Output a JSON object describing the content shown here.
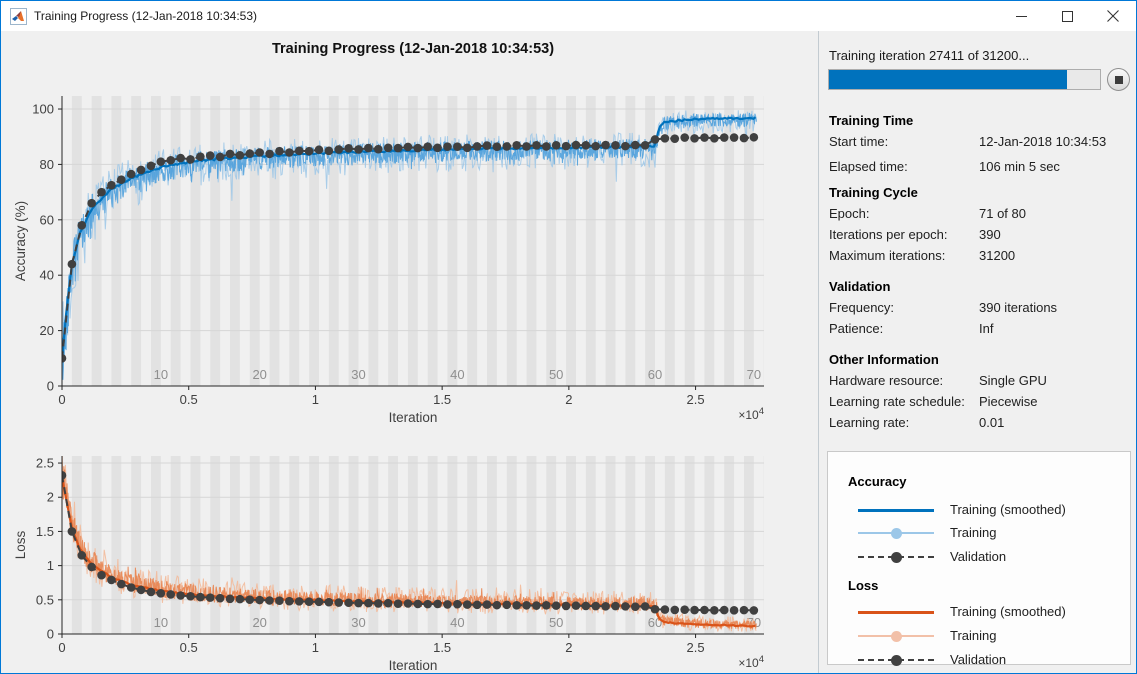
{
  "window": {
    "title": "Training Progress (12-Jan-2018 10:34:53)",
    "controls": {
      "minimize": "minimize",
      "maximize": "maximize",
      "close": "close"
    }
  },
  "panel": {
    "progress": {
      "label": "Training iteration 27411 of 31200...",
      "current": 27411,
      "total": 31200,
      "fraction": 0.8785
    },
    "sections": [
      {
        "title": "Training Time",
        "rows": [
          {
            "label": "Start time:",
            "value": "12-Jan-2018 10:34:53"
          },
          {
            "label": "Elapsed time:",
            "value": "106 min 5 sec"
          }
        ]
      },
      {
        "title": "Training Cycle",
        "rows": [
          {
            "label": "Epoch:",
            "value": "71 of 80"
          },
          {
            "label": "Iterations per epoch:",
            "value": "390"
          },
          {
            "label": "Maximum iterations:",
            "value": "31200"
          }
        ]
      },
      {
        "title": "Validation",
        "rows": [
          {
            "label": "Frequency:",
            "value": "390 iterations"
          },
          {
            "label": "Patience:",
            "value": "Inf"
          }
        ]
      },
      {
        "title": "Other Information",
        "rows": [
          {
            "label": "Hardware resource:",
            "value": "Single GPU"
          },
          {
            "label": "Learning rate schedule:",
            "value": "Piecewise"
          },
          {
            "label": "Learning rate:",
            "value": "0.01"
          }
        ]
      }
    ],
    "legend": {
      "groups": [
        {
          "title": "Accuracy",
          "items": [
            {
              "label": "Training (smoothed)",
              "style": "solid",
              "color": "#0072bd"
            },
            {
              "label": "Training",
              "style": "marker-line",
              "color": "#9cc7e8"
            },
            {
              "label": "Validation",
              "style": "dashed-marker",
              "color": "#404040"
            }
          ]
        },
        {
          "title": "Loss",
          "items": [
            {
              "label": "Training (smoothed)",
              "style": "solid",
              "color": "#d95319"
            },
            {
              "label": "Training",
              "style": "marker-line",
              "color": "#f2c0a8"
            },
            {
              "label": "Validation",
              "style": "dashed-marker",
              "color": "#404040"
            }
          ]
        }
      ]
    }
  },
  "chart_data": [
    {
      "type": "line",
      "title": "Training Progress (12-Jan-2018 10:34:53)",
      "xlabel": "Iteration",
      "ylabel": "Accuracy (%)",
      "x_multiplier_base": "×10",
      "x_multiplier_exp": "4",
      "xlim": [
        0,
        27700
      ],
      "ylim": [
        0,
        104.7
      ],
      "xticks": [
        0,
        5000,
        10000,
        15000,
        20000,
        25000
      ],
      "xtick_labels": [
        "0",
        "0.5",
        "1",
        "1.5",
        "2",
        "2.5"
      ],
      "yticks": [
        0,
        20,
        40,
        60,
        80,
        100
      ],
      "ytick_labels": [
        "0",
        "20",
        "40",
        "60",
        "80",
        "100"
      ],
      "iterations_per_epoch": 390,
      "epoch_labels": [
        10,
        20,
        30,
        40,
        50,
        60,
        70
      ],
      "last_iteration": 27411,
      "colors": {
        "smoothed": "#0072bd",
        "raw_band": "#4fa0db",
        "raw_spikes": "#9cc7e8",
        "validation": "#404040",
        "stripe": "#e2e2e2",
        "grid": "#d6d6d6"
      },
      "series": [
        {
          "name": "Training (smoothed)",
          "kind": "smoothed",
          "anchors": [
            [
              0,
              9
            ],
            [
              150,
              25
            ],
            [
              390,
              44
            ],
            [
              700,
              55
            ],
            [
              1170,
              64
            ],
            [
              1950,
              71
            ],
            [
              2730,
              75
            ],
            [
              3900,
              79
            ],
            [
              5460,
              81.5
            ],
            [
              7800,
              83
            ],
            [
              11700,
              84.5
            ],
            [
              15600,
              85.5
            ],
            [
              19500,
              86
            ],
            [
              23400,
              86.5
            ],
            [
              23550,
              93
            ],
            [
              23800,
              95.5
            ],
            [
              25000,
              96.3
            ],
            [
              27411,
              96.8
            ]
          ]
        },
        {
          "name": "Training",
          "kind": "raw",
          "noise_bias": 0.6
        },
        {
          "name": "Validation",
          "kind": "validation",
          "x_step": 390,
          "values": [
            10,
            44,
            58,
            66,
            70,
            72.5,
            74.5,
            76.5,
            78,
            79.5,
            81,
            81.5,
            82.3,
            81.8,
            82.8,
            83.2,
            82.7,
            83.8,
            83.3,
            83.9,
            84.3,
            83.8,
            84.8,
            84.3,
            84.9,
            84.8,
            85.3,
            84.9,
            85.4,
            85.8,
            85.4,
            85.9,
            85.5,
            86,
            85.9,
            86.3,
            85.9,
            86.4,
            86,
            86.4,
            86.4,
            86,
            86.5,
            86.8,
            86.4,
            86.5,
            86.9,
            86.5,
            86.9,
            86.5,
            86.9,
            86.6,
            87,
            86.9,
            86.6,
            87,
            86.9,
            86.6,
            87,
            86.9,
            89,
            89.4,
            89.3,
            89.7,
            89.4,
            89.7,
            89.4,
            89.7,
            89.7,
            89.5,
            89.8
          ]
        }
      ]
    },
    {
      "type": "line",
      "title": "",
      "xlabel": "Iteration",
      "ylabel": "Loss",
      "x_multiplier_base": "×10",
      "x_multiplier_exp": "4",
      "xlim": [
        0,
        27700
      ],
      "ylim": [
        0,
        2.603
      ],
      "xticks": [
        0,
        5000,
        10000,
        15000,
        20000,
        25000
      ],
      "xtick_labels": [
        "0",
        "0.5",
        "1",
        "1.5",
        "2",
        "2.5"
      ],
      "yticks": [
        0,
        0.5,
        1,
        1.5,
        2,
        2.5
      ],
      "ytick_labels": [
        "0",
        "0.5",
        "1",
        "1.5",
        "2",
        "2.5"
      ],
      "iterations_per_epoch": 390,
      "epoch_labels": [
        10,
        20,
        30,
        40,
        50,
        60,
        70
      ],
      "last_iteration": 27411,
      "colors": {
        "smoothed": "#d95319",
        "raw_band": "#e8834f",
        "raw_spikes": "#f3b795",
        "validation": "#404040",
        "stripe": "#e2e2e2",
        "grid": "#d6d6d6"
      },
      "series": [
        {
          "name": "Training (smoothed)",
          "kind": "smoothed",
          "anchors": [
            [
              0,
              2.3
            ],
            [
              200,
              1.9
            ],
            [
              390,
              1.55
            ],
            [
              700,
              1.25
            ],
            [
              1170,
              1.02
            ],
            [
              1950,
              0.83
            ],
            [
              2730,
              0.72
            ],
            [
              3900,
              0.63
            ],
            [
              5460,
              0.565
            ],
            [
              7800,
              0.52
            ],
            [
              11700,
              0.475
            ],
            [
              15600,
              0.45
            ],
            [
              19500,
              0.43
            ],
            [
              23400,
              0.41
            ],
            [
              23550,
              0.22
            ],
            [
              23800,
              0.17
            ],
            [
              25000,
              0.14
            ],
            [
              27411,
              0.115
            ]
          ]
        },
        {
          "name": "Training",
          "kind": "raw",
          "noise_bias": 0.4
        },
        {
          "name": "Validation",
          "kind": "validation",
          "x_step": 390,
          "values": [
            2.32,
            1.5,
            1.15,
            0.98,
            0.86,
            0.79,
            0.73,
            0.68,
            0.645,
            0.615,
            0.595,
            0.578,
            0.563,
            0.552,
            0.54,
            0.532,
            0.524,
            0.515,
            0.51,
            0.502,
            0.497,
            0.49,
            0.487,
            0.48,
            0.477,
            0.472,
            0.47,
            0.465,
            0.46,
            0.457,
            0.453,
            0.452,
            0.447,
            0.45,
            0.443,
            0.446,
            0.44,
            0.437,
            0.44,
            0.432,
            0.436,
            0.43,
            0.427,
            0.43,
            0.422,
            0.426,
            0.42,
            0.42,
            0.416,
            0.42,
            0.415,
            0.41,
            0.415,
            0.41,
            0.409,
            0.405,
            0.409,
            0.404,
            0.4,
            0.404,
            0.362,
            0.357,
            0.352,
            0.356,
            0.35,
            0.351,
            0.346,
            0.35,
            0.346,
            0.349,
            0.345
          ]
        }
      ]
    }
  ]
}
